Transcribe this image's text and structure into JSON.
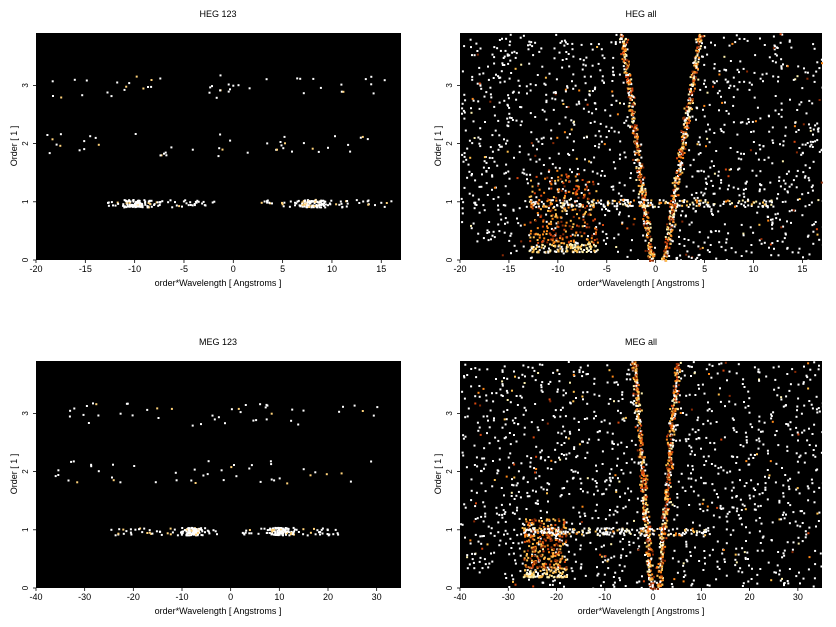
{
  "chart_data": [
    {
      "type": "heatmap",
      "title": "HEG 123",
      "xlabel": "order*Wavelength [ Angstroms ]",
      "ylabel": "Order [ 1 ]",
      "xlim": [
        -20,
        17
      ],
      "ylim": [
        0,
        3.9
      ],
      "xticks": [
        -20,
        -15,
        -10,
        -5,
        0,
        5,
        10,
        15
      ],
      "yticks": [
        0,
        1,
        2,
        3
      ],
      "background": "#000000",
      "clusters": [
        {
          "desc": "order 1 band left",
          "x": [
            -13,
            -2
          ],
          "y": [
            0.92,
            1.05
          ],
          "density": "high",
          "peak_x": -10
        },
        {
          "desc": "order 1 band right",
          "x": [
            2.5,
            16
          ],
          "y": [
            0.92,
            1.05
          ],
          "density": "high",
          "peak_x": 8
        },
        {
          "desc": "order 2 sparse",
          "x": [
            -19,
            14
          ],
          "y": [
            1.8,
            2.2
          ],
          "density": "low"
        },
        {
          "desc": "order 3 sparse",
          "x": [
            -19,
            16
          ],
          "y": [
            2.8,
            3.2
          ],
          "density": "low"
        }
      ]
    },
    {
      "type": "heatmap",
      "title": "HEG all",
      "xlabel": "order*Wavelength [ Angstroms ]",
      "ylabel": "Order [ 1 ]",
      "xlim": [
        -20,
        17
      ],
      "ylim": [
        0,
        3.9
      ],
      "xticks": [
        -20,
        -15,
        -10,
        -5,
        0,
        5,
        10,
        15
      ],
      "yticks": [
        0,
        1,
        2,
        3
      ],
      "background": "#000000",
      "clusters": [
        {
          "desc": "diffuse background",
          "x": [
            -20,
            17
          ],
          "y": [
            0,
            3.9
          ],
          "density": "medium"
        },
        {
          "desc": "left wedge",
          "x_at_top": -3.5,
          "x_at_bottom": -0.5,
          "density": "high"
        },
        {
          "desc": "right wedge",
          "x_at_top": 4.5,
          "x_at_bottom": 0.8,
          "density": "high"
        },
        {
          "desc": "lower-left orange block",
          "x": [
            -13,
            -6
          ],
          "y": [
            0.15,
            1.5
          ],
          "density": "high"
        },
        {
          "desc": "order 1 band",
          "x": [
            -13,
            12
          ],
          "y": [
            0.92,
            1.05
          ],
          "density": "high"
        }
      ]
    },
    {
      "type": "heatmap",
      "title": "MEG 123",
      "xlabel": "order*Wavelength [ Angstroms ]",
      "ylabel": "Order [ 1 ]",
      "xlim": [
        -40,
        35
      ],
      "ylim": [
        0,
        3.9
      ],
      "xticks": [
        -40,
        -30,
        -20,
        -10,
        0,
        10,
        20,
        30
      ],
      "yticks": [
        0,
        1,
        2,
        3
      ],
      "background": "#000000",
      "clusters": [
        {
          "desc": "order 1 band left",
          "x": [
            -25,
            -3
          ],
          "y": [
            0.92,
            1.05
          ],
          "density": "high",
          "peak_x": -8
        },
        {
          "desc": "order 1 band right",
          "x": [
            2,
            22
          ],
          "y": [
            0.92,
            1.05
          ],
          "density": "high",
          "peak_x": 10
        },
        {
          "desc": "order 2 sparse",
          "x": [
            -38,
            30
          ],
          "y": [
            1.8,
            2.2
          ],
          "density": "low"
        },
        {
          "desc": "order 3 sparse",
          "x": [
            -35,
            32
          ],
          "y": [
            2.8,
            3.2
          ],
          "density": "low"
        }
      ]
    },
    {
      "type": "heatmap",
      "title": "MEG all",
      "xlabel": "order*Wavelength [ Angstroms ]",
      "ylabel": "Order [ 1 ]",
      "xlim": [
        -40,
        35
      ],
      "ylim": [
        0,
        3.9
      ],
      "xticks": [
        -40,
        -30,
        -20,
        -10,
        0,
        10,
        20,
        30
      ],
      "yticks": [
        0,
        1,
        2,
        3
      ],
      "background": "#000000",
      "clusters": [
        {
          "desc": "diffuse background",
          "x": [
            -40,
            35
          ],
          "y": [
            0,
            3.9
          ],
          "density": "medium"
        },
        {
          "desc": "left wedge",
          "x_at_top": -4,
          "x_at_bottom": -0.5,
          "density": "high"
        },
        {
          "desc": "right wedge",
          "x_at_top": 5,
          "x_at_bottom": 1,
          "density": "high"
        },
        {
          "desc": "lower-left orange block",
          "x": [
            -27,
            -18
          ],
          "y": [
            0.2,
            1.2
          ],
          "density": "high"
        },
        {
          "desc": "order 1 band",
          "x": [
            -28,
            12
          ],
          "y": [
            0.92,
            1.05
          ],
          "density": "high"
        }
      ]
    }
  ]
}
